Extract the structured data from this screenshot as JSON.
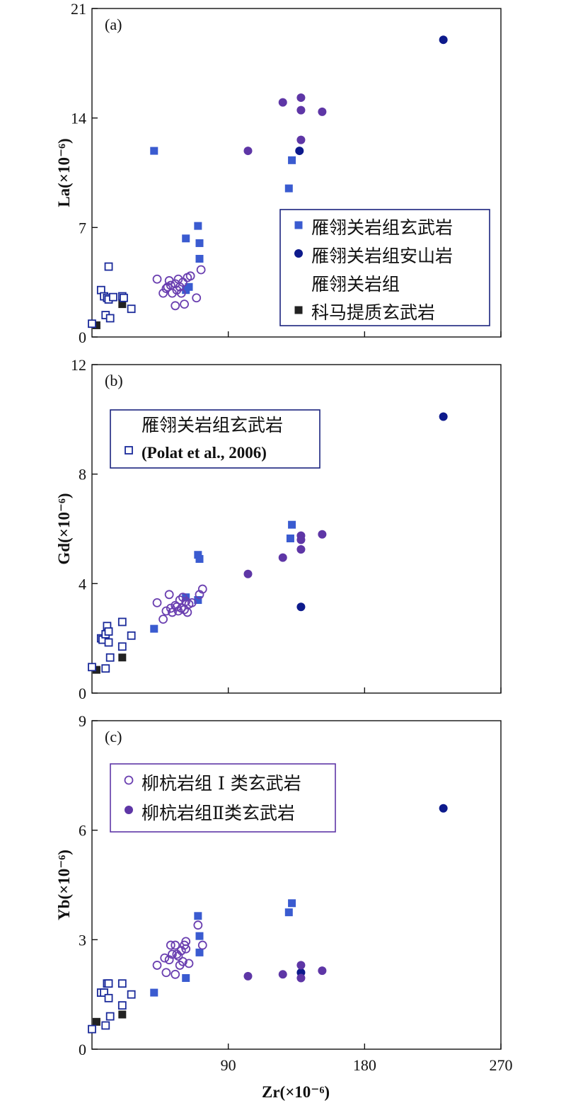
{
  "colors": {
    "basalt_filled": "#3a5bd0",
    "andesite": "#0d1a8c",
    "komatiite": "#222222",
    "basalt_open": "#1a2a9a",
    "type1": "#6a3fb0",
    "type2": "#5e36a6",
    "legend_border_ab": "#1a237e",
    "legend_border_c": "#5e36a6"
  },
  "legends": {
    "a": [
      {
        "key": "basalt_filled",
        "label": "雁翎关岩组玄武岩"
      },
      {
        "key": "andesite",
        "label": "雁翎关岩组安山岩"
      },
      {
        "key": "komatiite",
        "label_lines": [
          "雁翎关岩组",
          "科马提质玄武岩"
        ]
      }
    ],
    "b": [
      {
        "key": "basalt_open",
        "label_lines": [
          "雁翎关岩组玄武岩",
          "(Polat et al., 2006)"
        ]
      }
    ],
    "c": [
      {
        "key": "type1",
        "label": "柳杭岩组 Ⅰ 类玄武岩"
      },
      {
        "key": "type2",
        "label": "柳杭岩组Ⅱ类玄武岩"
      }
    ]
  },
  "chart_data": [
    {
      "type": "scatter",
      "panel_label": "(a)",
      "xlabel": "",
      "ylabel": "La(×10⁻⁶)",
      "xlim": [
        0,
        270
      ],
      "ylim": [
        0,
        21
      ],
      "xticks": [],
      "yticks": [
        0,
        7,
        14,
        21
      ],
      "series": [
        {
          "key": "basalt_filled",
          "name": "雁翎关岩组玄武岩",
          "marker": "square-filled",
          "points": [
            [
              41,
              11.9
            ],
            [
              62,
              6.3
            ],
            [
              70,
              7.1
            ],
            [
              71,
              6.0
            ],
            [
              71,
              5.0
            ],
            [
              64,
              3.2
            ],
            [
              62,
              3.0
            ],
            [
              132,
              11.3
            ],
            [
              130,
              9.5
            ]
          ]
        },
        {
          "key": "andesite",
          "name": "雁翎关岩组安山岩",
          "marker": "circle-filled",
          "points": [
            [
              232,
              19.0
            ],
            [
              137,
              11.9
            ]
          ]
        },
        {
          "key": "komatiite",
          "name_lines": [
            "雁翎关岩组",
            "科马提质玄武岩"
          ],
          "marker": "square-filled",
          "points": [
            [
              3,
              0.75
            ],
            [
              20,
              2.1
            ]
          ]
        },
        {
          "key": "basalt_open",
          "marker": "square-open",
          "points": [
            [
              0,
              0.85
            ],
            [
              6,
              3.0
            ],
            [
              8,
              2.6
            ],
            [
              10,
              2.5
            ],
            [
              11,
              4.5
            ],
            [
              11,
              2.4
            ],
            [
              14,
              2.55
            ],
            [
              20,
              2.6
            ],
            [
              21,
              2.5
            ],
            [
              9,
              1.4
            ],
            [
              12,
              1.2
            ],
            [
              26,
              1.8
            ]
          ]
        },
        {
          "key": "type1",
          "marker": "circle-open",
          "points": [
            [
              43,
              3.7
            ],
            [
              47,
              2.8
            ],
            [
              49,
              3.1
            ],
            [
              51,
              3.6
            ],
            [
              52,
              3.3
            ],
            [
              53,
              2.8
            ],
            [
              55,
              3.4
            ],
            [
              55,
              2.0
            ],
            [
              57,
              3.7
            ],
            [
              58,
              3.2
            ],
            [
              59,
              2.8
            ],
            [
              60,
              3.5
            ],
            [
              61,
              2.1
            ],
            [
              63,
              3.8
            ],
            [
              65,
              3.9
            ],
            [
              69,
              2.5
            ],
            [
              72,
              4.3
            ],
            [
              56,
              3.0
            ],
            [
              50,
              3.2
            ]
          ]
        },
        {
          "key": "type2",
          "marker": "circle-filled",
          "points": [
            [
              103,
              11.9
            ],
            [
              126,
              15.0
            ],
            [
              138,
              15.3
            ],
            [
              138,
              14.5
            ],
            [
              138,
              12.6
            ],
            [
              152,
              14.4
            ]
          ]
        }
      ]
    },
    {
      "type": "scatter",
      "panel_label": "(b)",
      "xlabel": "",
      "ylabel": "Gd(×10⁻⁶)",
      "xlim": [
        0,
        270
      ],
      "ylim": [
        0,
        12
      ],
      "xticks": [],
      "yticks": [
        0,
        4,
        8,
        12
      ],
      "series": [
        {
          "key": "basalt_filled",
          "marker": "square-filled",
          "points": [
            [
              41,
              2.35
            ],
            [
              62,
              3.5
            ],
            [
              70,
              5.05
            ],
            [
              71,
              4.9
            ],
            [
              70,
              3.4
            ],
            [
              131,
              5.65
            ],
            [
              132,
              6.15
            ]
          ]
        },
        {
          "key": "andesite",
          "marker": "circle-filled",
          "points": [
            [
              232,
              10.1
            ],
            [
              138,
              3.15
            ]
          ]
        },
        {
          "key": "komatiite",
          "marker": "square-filled",
          "points": [
            [
              3,
              0.85
            ],
            [
              20,
              1.3
            ]
          ]
        },
        {
          "key": "basalt_open",
          "name_lines": [
            "雁翎关岩组玄武岩",
            "(Polat et al., 2006)"
          ],
          "marker": "square-open",
          "points": [
            [
              0,
              0.95
            ],
            [
              6,
              2.0
            ],
            [
              7,
              1.95
            ],
            [
              9,
              2.15
            ],
            [
              10,
              2.45
            ],
            [
              11,
              2.25
            ],
            [
              11,
              1.85
            ],
            [
              12,
              1.3
            ],
            [
              20,
              2.6
            ],
            [
              20,
              1.7
            ],
            [
              26,
              2.1
            ],
            [
              9,
              0.9
            ]
          ]
        },
        {
          "key": "type1",
          "marker": "circle-open",
          "points": [
            [
              43,
              3.3
            ],
            [
              47,
              2.7
            ],
            [
              49,
              3.0
            ],
            [
              51,
              3.6
            ],
            [
              52,
              3.1
            ],
            [
              53,
              2.95
            ],
            [
              55,
              3.2
            ],
            [
              57,
              3.0
            ],
            [
              58,
              3.4
            ],
            [
              59,
              3.1
            ],
            [
              60,
              3.5
            ],
            [
              61,
              3.05
            ],
            [
              63,
              2.95
            ],
            [
              64,
              3.25
            ],
            [
              66,
              3.3
            ],
            [
              71,
              3.6
            ],
            [
              73,
              3.8
            ],
            [
              62,
              3.35
            ],
            [
              56,
              3.15
            ]
          ]
        },
        {
          "key": "type2",
          "marker": "circle-filled",
          "points": [
            [
              103,
              4.35
            ],
            [
              126,
              4.95
            ],
            [
              138,
              5.75
            ],
            [
              138,
              5.6
            ],
            [
              138,
              5.25
            ],
            [
              152,
              5.8
            ]
          ]
        }
      ]
    },
    {
      "type": "scatter",
      "panel_label": "(c)",
      "xlabel": "Zr(×10⁻⁶)",
      "ylabel": "Yb(×10⁻⁶)",
      "xlim": [
        0,
        270
      ],
      "ylim": [
        0,
        9
      ],
      "xticks": [
        90,
        180,
        270
      ],
      "yticks": [
        0,
        3,
        6,
        9
      ],
      "series": [
        {
          "key": "basalt_filled",
          "marker": "square-filled",
          "points": [
            [
              41,
              1.55
            ],
            [
              62,
              1.95
            ],
            [
              70,
              3.65
            ],
            [
              71,
              3.1
            ],
            [
              71,
              2.65
            ],
            [
              130,
              3.75
            ],
            [
              132,
              4.0
            ]
          ]
        },
        {
          "key": "andesite",
          "marker": "circle-filled",
          "points": [
            [
              232,
              6.6
            ],
            [
              138,
              2.1
            ]
          ]
        },
        {
          "key": "komatiite",
          "marker": "square-filled",
          "points": [
            [
              3,
              0.75
            ],
            [
              20,
              0.95
            ]
          ]
        },
        {
          "key": "basalt_open",
          "marker": "square-open",
          "points": [
            [
              0,
              0.55
            ],
            [
              6,
              1.55
            ],
            [
              8,
              1.55
            ],
            [
              10,
              1.8
            ],
            [
              11,
              1.8
            ],
            [
              11,
              1.4
            ],
            [
              12,
              0.9
            ],
            [
              9,
              0.65
            ],
            [
              20,
              1.8
            ],
            [
              20,
              1.2
            ],
            [
              26,
              1.5
            ]
          ]
        },
        {
          "key": "type1",
          "name": "柳杭岩组 Ⅰ 类玄武岩",
          "marker": "circle-open",
          "points": [
            [
              43,
              2.3
            ],
            [
              49,
              2.1
            ],
            [
              51,
              2.45
            ],
            [
              52,
              2.85
            ],
            [
              53,
              2.6
            ],
            [
              55,
              2.05
            ],
            [
              55,
              2.85
            ],
            [
              57,
              2.55
            ],
            [
              58,
              2.3
            ],
            [
              59,
              2.7
            ],
            [
              60,
              2.4
            ],
            [
              61,
              2.85
            ],
            [
              62,
              2.95
            ],
            [
              64,
              2.35
            ],
            [
              70,
              3.4
            ],
            [
              73,
              2.85
            ],
            [
              56,
              2.6
            ],
            [
              62,
              2.75
            ],
            [
              48,
              2.5
            ]
          ]
        },
        {
          "key": "type2",
          "name": "柳杭岩组Ⅱ类玄武岩",
          "marker": "circle-filled",
          "points": [
            [
              103,
              2.0
            ],
            [
              126,
              2.05
            ],
            [
              138,
              2.3
            ],
            [
              138,
              1.95
            ],
            [
              152,
              2.15
            ]
          ]
        }
      ]
    }
  ]
}
